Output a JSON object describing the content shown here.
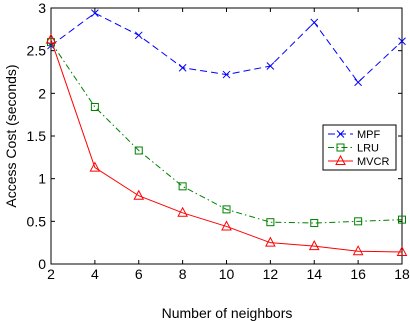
{
  "chart_data": {
    "type": "line",
    "xlabel": "Number of neighbors",
    "ylabel": "Access Cost (seconds)",
    "xlim": [
      2,
      18
    ],
    "ylim": [
      0,
      3
    ],
    "xticks": [
      "2",
      "4",
      "6",
      "8",
      "10",
      "12",
      "14",
      "16",
      "18"
    ],
    "yticks": [
      "0",
      "0.5",
      "1",
      "1.5",
      "2",
      "2.5",
      "3"
    ],
    "grid": false,
    "legend_position": "right",
    "x": [
      2,
      4,
      6,
      8,
      10,
      12,
      14,
      16,
      18
    ],
    "series": [
      {
        "name": "MPF",
        "color": "#0000ff",
        "marker": "x",
        "line_style": "dashed",
        "values": [
          2.56,
          2.94,
          2.68,
          2.3,
          2.22,
          2.32,
          2.83,
          2.13,
          2.61
        ]
      },
      {
        "name": "LRU",
        "color": "#008000",
        "marker": "square",
        "line_style": "dash-dot",
        "values": [
          2.6,
          1.84,
          1.33,
          0.91,
          0.64,
          0.49,
          0.48,
          0.5,
          0.52
        ]
      },
      {
        "name": "MVCR",
        "color": "#ff0000",
        "marker": "triangle",
        "line_style": "solid",
        "values": [
          2.63,
          1.13,
          0.8,
          0.6,
          0.44,
          0.25,
          0.21,
          0.15,
          0.14
        ]
      }
    ]
  }
}
